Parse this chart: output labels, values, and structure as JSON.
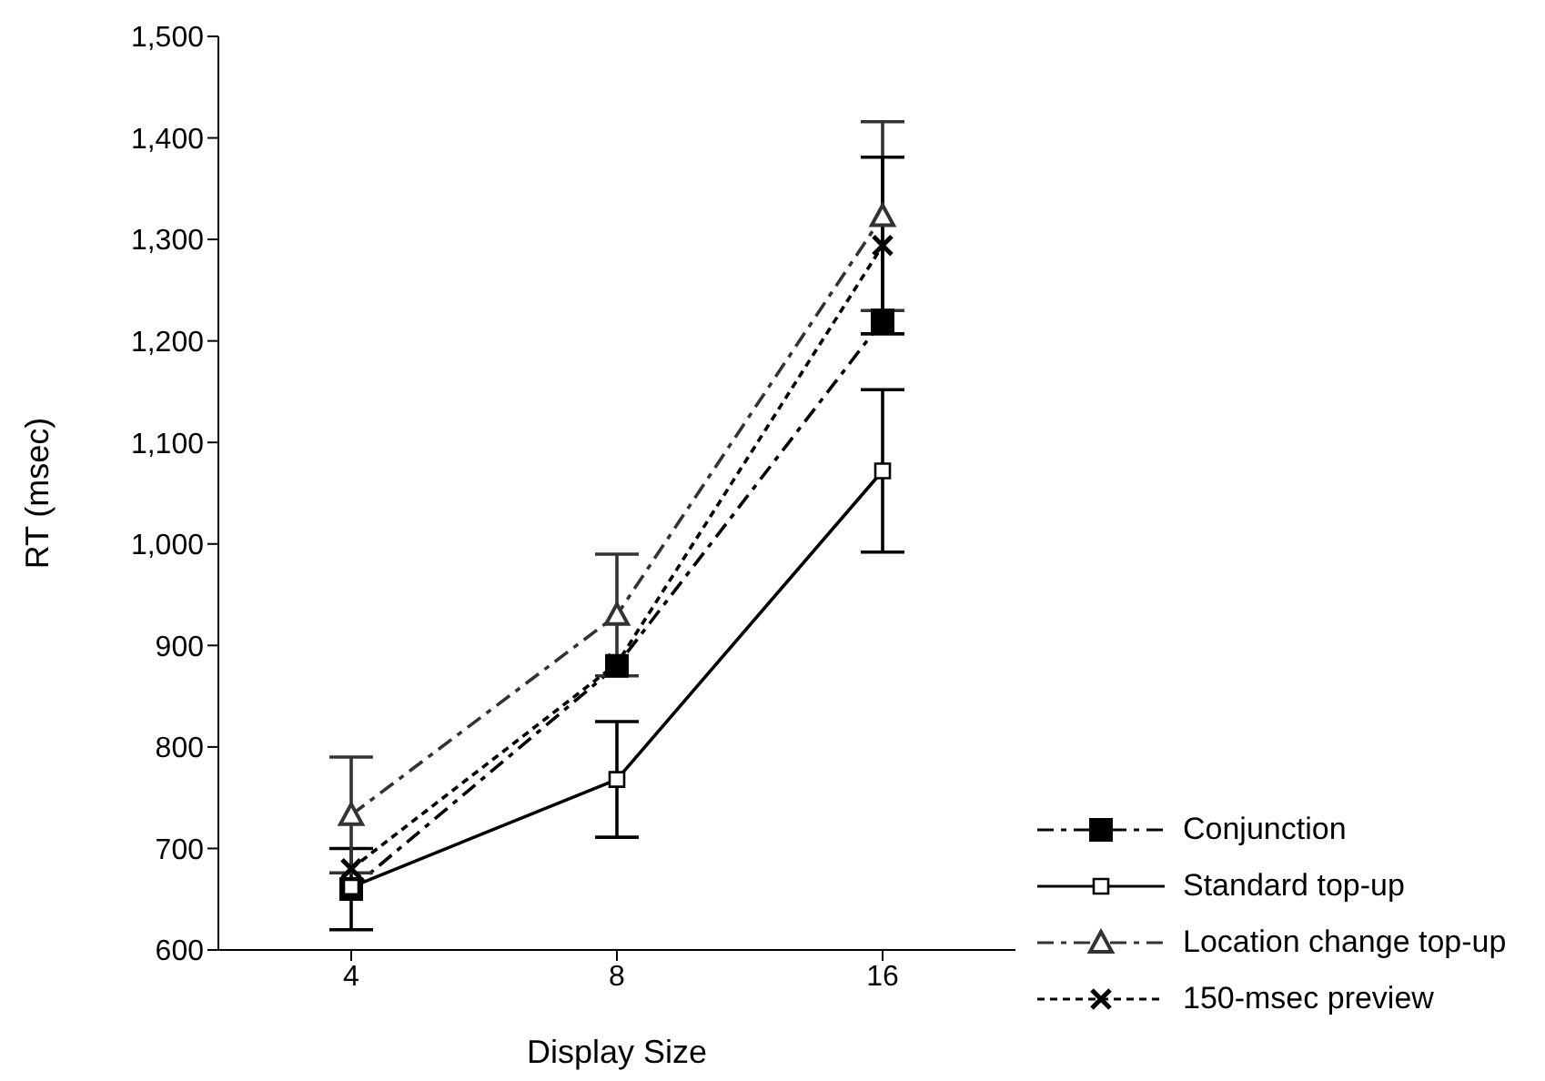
{
  "chart_data": {
    "type": "line",
    "xlabel": "Display Size",
    "ylabel": "RT (msec)",
    "categories": [
      "4",
      "8",
      "16"
    ],
    "ylim": [
      600,
      1500
    ],
    "yticks": [
      {
        "value": 600,
        "label": "600"
      },
      {
        "value": 700,
        "label": "700"
      },
      {
        "value": 800,
        "label": "800"
      },
      {
        "value": 900,
        "label": "900"
      },
      {
        "value": 1000,
        "label": "1,000"
      },
      {
        "value": 1100,
        "label": "1,100"
      },
      {
        "value": 1200,
        "label": "1,200"
      },
      {
        "value": 1300,
        "label": "1,300"
      },
      {
        "value": 1400,
        "label": "1,400"
      },
      {
        "value": 1500,
        "label": "1,500"
      }
    ],
    "grid": false,
    "legend": "right",
    "series": [
      {
        "name": "Conjunction",
        "color": "#000000",
        "values": [
          660,
          880,
          1220
        ],
        "errors": [
          40,
          null,
          null
        ],
        "marker": "square",
        "line_style": "dashed"
      },
      {
        "name": "Standard top-up",
        "color": "#000000",
        "values": [
          662,
          768,
          1072
        ],
        "errors": [
          null,
          57,
          80
        ],
        "marker": "square",
        "line_style": "solid"
      },
      {
        "name": "Location change top-up",
        "color": "#333333",
        "values": [
          733,
          930,
          1323
        ],
        "errors": [
          57,
          60,
          93
        ],
        "marker": "triangle",
        "line_style": "dashed"
      },
      {
        "name": "150-msec preview",
        "color": "#000000",
        "values": [
          680,
          882,
          1294
        ],
        "errors": [
          null,
          null,
          87
        ],
        "marker": "cross",
        "line_style": "dotted"
      }
    ]
  }
}
